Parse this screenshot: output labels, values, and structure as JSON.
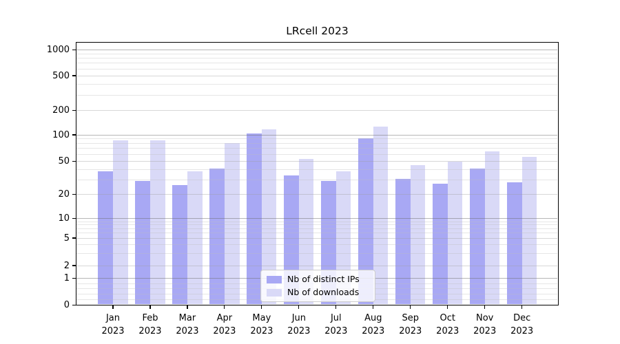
{
  "chart_data": {
    "type": "bar",
    "title": "LRcell 2023",
    "categories": [
      "Jan",
      "Feb",
      "Mar",
      "Apr",
      "May",
      "Jun",
      "Jul",
      "Aug",
      "Sep",
      "Oct",
      "Nov",
      "Dec"
    ],
    "year": "2023",
    "series": [
      {
        "name": "Nb of distinct IPs",
        "color": "#a8a8f4",
        "values": [
          38,
          29,
          26,
          41,
          105,
          34,
          29,
          92,
          31,
          27,
          41,
          28
        ]
      },
      {
        "name": "Nb of downloads",
        "color": "#d9d9f7",
        "values": [
          87,
          87,
          38,
          80,
          118,
          53,
          38,
          127,
          45,
          49,
          65,
          56
        ]
      }
    ],
    "xlabel": "",
    "ylabel": "",
    "y_axis": {
      "scale": "symlog",
      "tick_values": [
        0,
        1,
        2,
        5,
        10,
        20,
        50,
        100,
        200,
        500,
        1000
      ],
      "tick_labels": [
        "0",
        "1",
        "2",
        "5",
        "10",
        "20",
        "50",
        "100",
        "200",
        "500",
        "1000"
      ],
      "ylim": [
        0,
        1200
      ],
      "grid": true,
      "minor_grid_values": [
        0.2,
        0.4,
        0.6,
        0.8,
        3,
        4,
        6,
        7,
        8,
        9,
        30,
        40,
        60,
        70,
        80,
        90,
        300,
        400,
        600,
        700,
        800,
        900
      ],
      "mid_grid_values": [
        2,
        5,
        20,
        50,
        200,
        500
      ],
      "major_grid_values": [
        1,
        10,
        100,
        1000
      ]
    },
    "legend": {
      "position": "lower center inside plot",
      "entries": [
        "Nb of distinct IPs",
        "Nb of downloads"
      ]
    },
    "colors": {
      "background": "#ffffff",
      "axis": "#000000",
      "grid_major": "#b4b4b4",
      "grid_minor": "#e2e2e2",
      "legend_border": "#cccccc"
    }
  }
}
